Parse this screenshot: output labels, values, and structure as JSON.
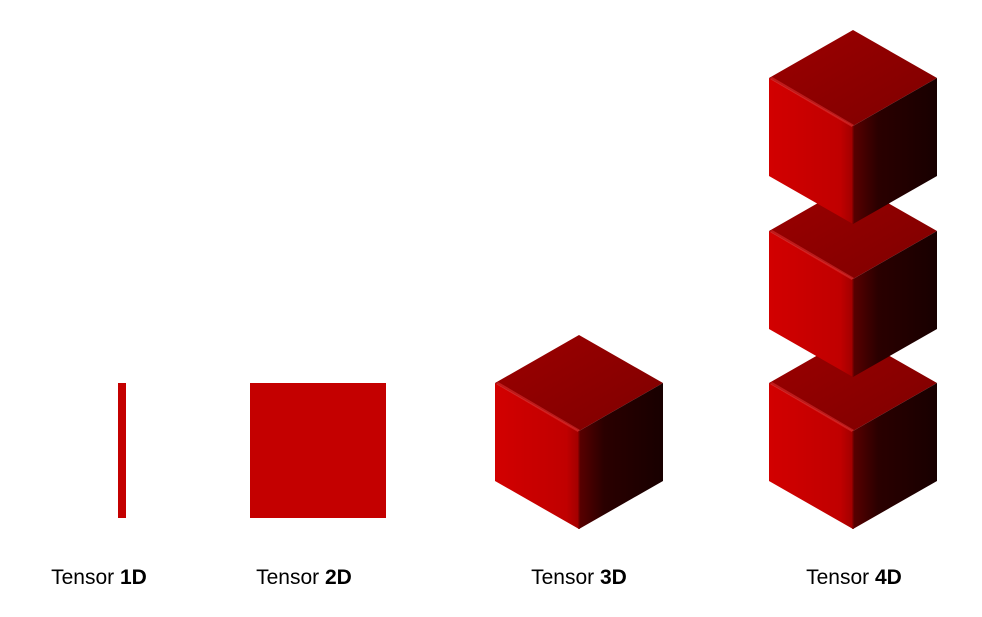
{
  "colors": {
    "tensor_red": "#c40000",
    "cube_top": "#8e0000",
    "cube_right_dark": "#1e0000",
    "background": "#ffffff"
  },
  "tensors": [
    {
      "prefix": "Tensor",
      "dim": "1D",
      "shape": "line",
      "cube_count": 0
    },
    {
      "prefix": "Tensor",
      "dim": "2D",
      "shape": "square",
      "cube_count": 0
    },
    {
      "prefix": "Tensor",
      "dim": "3D",
      "shape": "cube",
      "cube_count": 1
    },
    {
      "prefix": "Tensor",
      "dim": "4D",
      "shape": "cube-stack",
      "cube_count": 3
    }
  ]
}
